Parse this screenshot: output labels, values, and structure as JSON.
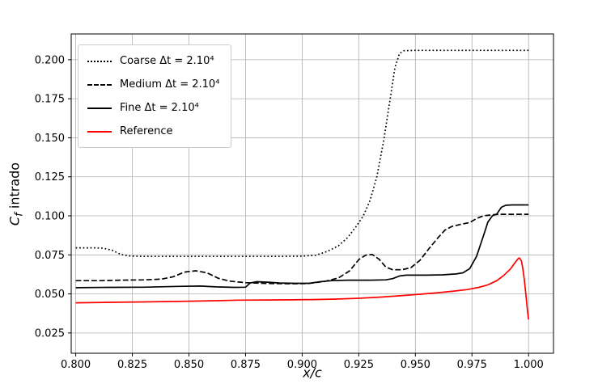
{
  "figure": {
    "background": "#ffffff"
  },
  "chart_data": {
    "type": "line",
    "title": "",
    "xlabel": "x/c",
    "ylabel_main": "C",
    "ylabel_sub": "f",
    "ylabel_tail": " intrado",
    "grid": true,
    "grid_color": "#b0b0b0",
    "legend_position": "upper left",
    "xlim": [
      0.798,
      1.011
    ],
    "ylim": [
      0.012,
      0.2165
    ],
    "xticks": [
      {
        "v": 0.8,
        "label": "0.800"
      },
      {
        "v": 0.825,
        "label": "0.825"
      },
      {
        "v": 0.85,
        "label": "0.850"
      },
      {
        "v": 0.875,
        "label": "0.875"
      },
      {
        "v": 0.9,
        "label": "0.900"
      },
      {
        "v": 0.925,
        "label": "0.925"
      },
      {
        "v": 0.95,
        "label": "0.950"
      },
      {
        "v": 0.975,
        "label": "0.975"
      },
      {
        "v": 1.0,
        "label": "1.000"
      }
    ],
    "yticks": [
      {
        "v": 0.025,
        "label": "0.025"
      },
      {
        "v": 0.05,
        "label": "0.050"
      },
      {
        "v": 0.075,
        "label": "0.075"
      },
      {
        "v": 0.1,
        "label": "0.100"
      },
      {
        "v": 0.125,
        "label": "0.125"
      },
      {
        "v": 0.15,
        "label": "0.150"
      },
      {
        "v": 0.175,
        "label": "0.175"
      },
      {
        "v": 0.2,
        "label": "0.200"
      }
    ],
    "series": [
      {
        "id": "coarse",
        "label": "Coarse Δt = 2.10⁴",
        "color": "#000000",
        "style": "dotted",
        "points": [
          [
            0.8,
            0.0795
          ],
          [
            0.808,
            0.0795
          ],
          [
            0.812,
            0.0793
          ],
          [
            0.816,
            0.078
          ],
          [
            0.82,
            0.0752
          ],
          [
            0.824,
            0.0743
          ],
          [
            0.83,
            0.074
          ],
          [
            0.845,
            0.074
          ],
          [
            0.86,
            0.074
          ],
          [
            0.875,
            0.074
          ],
          [
            0.89,
            0.074
          ],
          [
            0.9,
            0.0742
          ],
          [
            0.906,
            0.0748
          ],
          [
            0.911,
            0.0772
          ],
          [
            0.916,
            0.0808
          ],
          [
            0.92,
            0.086
          ],
          [
            0.924,
            0.0935
          ],
          [
            0.927,
            0.1
          ],
          [
            0.93,
            0.11
          ],
          [
            0.933,
            0.125
          ],
          [
            0.936,
            0.148
          ],
          [
            0.939,
            0.176
          ],
          [
            0.941,
            0.195
          ],
          [
            0.943,
            0.204
          ],
          [
            0.945,
            0.2058
          ],
          [
            0.95,
            0.206
          ],
          [
            0.96,
            0.206
          ],
          [
            0.975,
            0.206
          ],
          [
            0.99,
            0.206
          ],
          [
            1.0,
            0.206
          ]
        ]
      },
      {
        "id": "medium",
        "label": "Medium Δt = 2.10⁴",
        "color": "#000000",
        "style": "dashed",
        "points": [
          [
            0.8,
            0.0585
          ],
          [
            0.81,
            0.0585
          ],
          [
            0.82,
            0.0588
          ],
          [
            0.83,
            0.059
          ],
          [
            0.838,
            0.0595
          ],
          [
            0.843,
            0.061
          ],
          [
            0.848,
            0.064
          ],
          [
            0.853,
            0.0648
          ],
          [
            0.858,
            0.0635
          ],
          [
            0.863,
            0.06
          ],
          [
            0.868,
            0.0582
          ],
          [
            0.875,
            0.0572
          ],
          [
            0.885,
            0.0567
          ],
          [
            0.895,
            0.0565
          ],
          [
            0.903,
            0.0567
          ],
          [
            0.91,
            0.058
          ],
          [
            0.916,
            0.0602
          ],
          [
            0.921,
            0.0648
          ],
          [
            0.925,
            0.072
          ],
          [
            0.928,
            0.0748
          ],
          [
            0.931,
            0.0752
          ],
          [
            0.934,
            0.0722
          ],
          [
            0.937,
            0.0672
          ],
          [
            0.94,
            0.0655
          ],
          [
            0.944,
            0.0655
          ],
          [
            0.948,
            0.0668
          ],
          [
            0.952,
            0.0715
          ],
          [
            0.956,
            0.079
          ],
          [
            0.96,
            0.086
          ],
          [
            0.963,
            0.0908
          ],
          [
            0.966,
            0.0932
          ],
          [
            0.97,
            0.0945
          ],
          [
            0.974,
            0.0957
          ],
          [
            0.977,
            0.0983
          ],
          [
            0.98,
            0.1
          ],
          [
            0.983,
            0.1005
          ],
          [
            0.985,
            0.1008
          ],
          [
            0.987,
            0.101
          ],
          [
            1.0,
            0.101
          ]
        ]
      },
      {
        "id": "fine",
        "label": "Fine Δt = 2.10⁴",
        "color": "#000000",
        "style": "solid",
        "points": [
          [
            0.8,
            0.054
          ],
          [
            0.815,
            0.0542
          ],
          [
            0.83,
            0.0543
          ],
          [
            0.845,
            0.0548
          ],
          [
            0.855,
            0.055
          ],
          [
            0.862,
            0.0545
          ],
          [
            0.87,
            0.0542
          ],
          [
            0.875,
            0.0543
          ],
          [
            0.877,
            0.057
          ],
          [
            0.88,
            0.0578
          ],
          [
            0.885,
            0.0575
          ],
          [
            0.89,
            0.057
          ],
          [
            0.897,
            0.0568
          ],
          [
            0.903,
            0.0568
          ],
          [
            0.908,
            0.0578
          ],
          [
            0.913,
            0.0585
          ],
          [
            0.92,
            0.0588
          ],
          [
            0.93,
            0.0588
          ],
          [
            0.937,
            0.059
          ],
          [
            0.94,
            0.0598
          ],
          [
            0.943,
            0.0615
          ],
          [
            0.946,
            0.062
          ],
          [
            0.955,
            0.062
          ],
          [
            0.962,
            0.0622
          ],
          [
            0.968,
            0.0628
          ],
          [
            0.971,
            0.0635
          ],
          [
            0.974,
            0.0662
          ],
          [
            0.977,
            0.074
          ],
          [
            0.98,
            0.087
          ],
          [
            0.982,
            0.096
          ],
          [
            0.984,
            0.1
          ],
          [
            0.986,
            0.1012
          ],
          [
            0.988,
            0.1055
          ],
          [
            0.99,
            0.1068
          ],
          [
            0.993,
            0.107
          ],
          [
            1.0,
            0.107
          ]
        ]
      },
      {
        "id": "reference",
        "label": "Reference",
        "color": "#ff0000",
        "style": "solid",
        "points": [
          [
            0.8,
            0.0443
          ],
          [
            0.815,
            0.0446
          ],
          [
            0.83,
            0.0449
          ],
          [
            0.845,
            0.0452
          ],
          [
            0.86,
            0.0456
          ],
          [
            0.872,
            0.046
          ],
          [
            0.885,
            0.0461
          ],
          [
            0.895,
            0.0462
          ],
          [
            0.905,
            0.0464
          ],
          [
            0.915,
            0.0467
          ],
          [
            0.925,
            0.0472
          ],
          [
            0.935,
            0.048
          ],
          [
            0.945,
            0.049
          ],
          [
            0.952,
            0.0498
          ],
          [
            0.96,
            0.0508
          ],
          [
            0.967,
            0.0518
          ],
          [
            0.973,
            0.0528
          ],
          [
            0.978,
            0.0542
          ],
          [
            0.982,
            0.0558
          ],
          [
            0.986,
            0.0585
          ],
          [
            0.989,
            0.0618
          ],
          [
            0.992,
            0.066
          ],
          [
            0.994,
            0.07
          ],
          [
            0.9955,
            0.0728
          ],
          [
            0.996,
            0.073
          ],
          [
            0.9968,
            0.0712
          ],
          [
            0.9975,
            0.066
          ],
          [
            0.9982,
            0.058
          ],
          [
            0.999,
            0.047
          ],
          [
            0.9995,
            0.0395
          ],
          [
            1.0,
            0.0336
          ]
        ]
      }
    ]
  }
}
